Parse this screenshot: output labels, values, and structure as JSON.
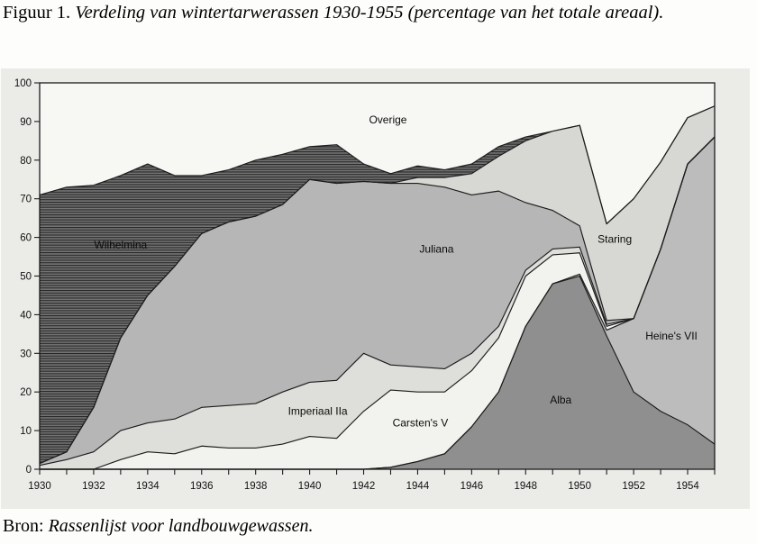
{
  "figure": {
    "title_prefix": "Figuur 1.",
    "title_italic": "Verdeling van wintertarwerassen 1930-1955 (percentage van het totale areaal).",
    "source_prefix": "Bron:",
    "source_italic": "Rassenlijst voor landbouwgewassen."
  },
  "colors": {
    "page_bg": "#fdfdfb",
    "figure_bg": "#ebebe8",
    "plot_bg_overige": "#f7f7f4",
    "line": "#1c1c1c",
    "tick_text": "#111111",
    "wilhelmina_base": "#747474",
    "wilhelmina_stripe": "#262626"
  },
  "chart_data": {
    "type": "area",
    "stacked": true,
    "title": "Verdeling van wintertarwerassen 1930-1955 (percentage van het totale areaal)",
    "xlabel": "",
    "ylabel": "",
    "ylim": [
      0,
      100
    ],
    "grid": false,
    "legend_position": "labels-inside-areas",
    "x": [
      1930,
      1931,
      1932,
      1933,
      1934,
      1935,
      1936,
      1937,
      1938,
      1939,
      1940,
      1941,
      1942,
      1943,
      1944,
      1945,
      1946,
      1947,
      1948,
      1949,
      1950,
      1951,
      1952,
      1953,
      1954,
      1955
    ],
    "x_tick_labels": [
      1930,
      1932,
      1934,
      1936,
      1938,
      1940,
      1942,
      1944,
      1946,
      1948,
      1950,
      1952,
      1954
    ],
    "y_ticks": [
      0,
      10,
      20,
      30,
      40,
      50,
      60,
      70,
      80,
      90,
      100
    ],
    "series": [
      {
        "name": "Alba",
        "color": "#8f8f8f",
        "label_at": {
          "year": 1949.3,
          "value": 18
        },
        "values": [
          0,
          0,
          0,
          0,
          0,
          0,
          0,
          0,
          0,
          0,
          0,
          0,
          0,
          0.5,
          2,
          4,
          11,
          20,
          37,
          48,
          50,
          34.5,
          20,
          15,
          11.5,
          6.5
        ]
      },
      {
        "name": "Heine's VII",
        "color": "#bcbcbc",
        "label_at": {
          "year": 1953.4,
          "value": 34.5
        },
        "values": [
          0,
          0,
          0,
          0,
          0,
          0,
          0,
          0,
          0,
          0,
          0,
          0,
          0,
          0,
          0,
          0,
          0,
          0,
          0,
          0,
          0.5,
          1.5,
          19,
          42,
          67.5,
          79.5
        ]
      },
      {
        "name": "Carsten's V",
        "color": "#f2f2ee",
        "label_at": {
          "year": 1944.1,
          "value": 12
        },
        "values": [
          0,
          0,
          0,
          2.5,
          4.5,
          4,
          6,
          5.5,
          5.5,
          6.5,
          8.5,
          8,
          15,
          20,
          18,
          16,
          14.5,
          14,
          13,
          7.5,
          5.5,
          1,
          0,
          0,
          0,
          0
        ]
      },
      {
        "name": "Imperiaal IIa",
        "color": "#dededa",
        "label_at": {
          "year": 1940.3,
          "value": 15
        },
        "values": [
          1,
          2.5,
          4.5,
          7.5,
          7.5,
          9,
          10,
          11,
          11.5,
          13.5,
          14,
          15,
          15,
          6.5,
          6.5,
          6,
          4.5,
          3,
          1.5,
          1.5,
          1.5,
          0.5,
          0,
          0,
          0,
          0
        ]
      },
      {
        "name": "Juliana",
        "color": "#b6b6b6",
        "label_at": {
          "year": 1944.7,
          "value": 57
        },
        "values": [
          0.5,
          2,
          11.5,
          24,
          33,
          39.5,
          45,
          47.5,
          48.5,
          48.5,
          52.5,
          51,
          44.5,
          47,
          47.5,
          47,
          41,
          35,
          17.5,
          10,
          5.5,
          1,
          0,
          0,
          0,
          0
        ]
      },
      {
        "name": "Staring",
        "color": "#d7d7d3",
        "label_at": {
          "year": 1951.3,
          "value": 59.5
        },
        "values": [
          0,
          0,
          0,
          0,
          0,
          0,
          0,
          0,
          0,
          0,
          0,
          0,
          0,
          0,
          1.5,
          2.5,
          5.5,
          9,
          16,
          20.5,
          26,
          25,
          31,
          22.5,
          12,
          8
        ]
      },
      {
        "name": "Wilhelmina",
        "color": "#747474",
        "hatch": "horizontal-lines",
        "label_at": {
          "year": 1933.0,
          "value": 58
        },
        "values": [
          69.5,
          68.5,
          57.5,
          42,
          34,
          23.5,
          15,
          13.5,
          14.5,
          13,
          8.5,
          10,
          4.5,
          2.5,
          3,
          2,
          2.5,
          2.5,
          1,
          0,
          0,
          0,
          0,
          0,
          0,
          0
        ]
      },
      {
        "name": "Overige",
        "role": "remainder-to-100",
        "color": "#f7f7f4",
        "label_at": {
          "year": 1942.9,
          "value": 90.5
        },
        "values": [
          29,
          27,
          26.5,
          24,
          21,
          24,
          24.5,
          22.5,
          20,
          18.5,
          16.5,
          16,
          21,
          23.5,
          21.5,
          22.5,
          21,
          16.5,
          14,
          12.5,
          11,
          36.5,
          30,
          20.5,
          9,
          6
        ]
      }
    ]
  }
}
